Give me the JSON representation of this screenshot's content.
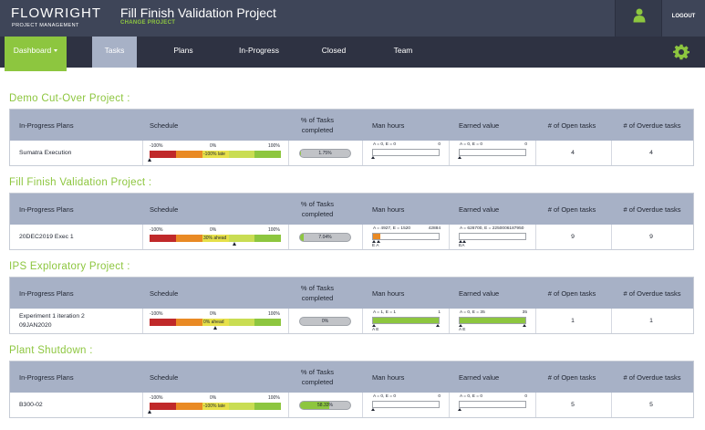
{
  "header": {
    "logo_line1": "FLOWRIGHT",
    "logo_line2": "PROJECT MANAGEMENT",
    "title": "Fill Finish Validation Project",
    "subtitle": "CHANGE PROJECT",
    "logout": "LOGOUT",
    "user_icon": "user-icon"
  },
  "nav": {
    "dashboard": "Dashboard",
    "tasks": "Tasks",
    "plans": "Plans",
    "in_progress": "In-Progress",
    "closed": "Closed",
    "team": "Team",
    "settings_icon": "gear-icon"
  },
  "colors": {
    "accent": "#8dc63f",
    "header": "#3e4558",
    "nav": "#2e3242",
    "table_header": "#a7b1c6",
    "late_red": "#c0292a",
    "orange": "#e98a24",
    "yellow": "#e6e04a",
    "green": "#8dc63f"
  },
  "columns": {
    "plans": "In-Progress Plans",
    "schedule": "Schedule",
    "pct_line1": "% of Tasks",
    "pct_line2": "completed",
    "man_hours": "Man hours",
    "earned_value": "Earned value",
    "open": "# of Open tasks",
    "overdue": "# of Overdue tasks"
  },
  "schedule_scale": {
    "min": "-100%",
    "mid": "0%",
    "max": "100%"
  },
  "projects": [
    {
      "title": "Demo Cut-Over Project :",
      "plan": "Sumatra Execution",
      "plan_line2": "",
      "schedule_state": "-100% late",
      "schedule_value": -100,
      "pct_text": "1.75%",
      "pct_value": 1.75,
      "mh_top": "A = 0, E = 0",
      "mh_max": "0",
      "mh_fill": 0,
      "mh_marks": "",
      "ev_top": "A = 0, E = 0",
      "ev_max": "0",
      "ev_fill": 0,
      "ev_marks": "",
      "open": "4",
      "overdue": "4"
    },
    {
      "title": "Fill Finish Validation Project :",
      "plan": "20DEC2019 Exec 1",
      "plan_line2": "",
      "schedule_state": "30% ahead",
      "schedule_value": 30,
      "pct_text": "7.04%",
      "pct_value": 7.04,
      "mh_top": "A = 4927, E = 1520",
      "mh_max": "42884",
      "mh_fill": 11.5,
      "mh_marks": "E A",
      "ev_top": "A = 626700, E = 2250006187950",
      "ev_max": "",
      "ev_fill": 0,
      "ev_marks": "EA",
      "open": "9",
      "overdue": "9"
    },
    {
      "title": "IPS Exploratory Project :",
      "plan": "Experiment 1 iteration 2",
      "plan_line2": "09JAN2020",
      "schedule_state": "0% ahead",
      "schedule_value": 0,
      "pct_text": "0%",
      "pct_value": 0,
      "mh_top": "A = 1, E = 1",
      "mh_max": "1",
      "mh_fill": 100,
      "mh_marks": "A E",
      "ev_top": "A = 0, E = 35",
      "ev_max": "35",
      "ev_fill": 100,
      "ev_marks": "A E",
      "open": "1",
      "overdue": "1"
    },
    {
      "title": "Plant Shutdown :",
      "plan": "B300-02",
      "plan_line2": "",
      "schedule_state": "-100% late",
      "schedule_value": -100,
      "pct_text": "58.33%",
      "pct_value": 58.33,
      "mh_top": "A = 0, E = 0",
      "mh_max": "0",
      "mh_fill": 0,
      "mh_marks": "",
      "ev_top": "A = 0, E = 0",
      "ev_max": "0",
      "ev_fill": 0,
      "ev_marks": "",
      "open": "5",
      "overdue": "5"
    }
  ]
}
